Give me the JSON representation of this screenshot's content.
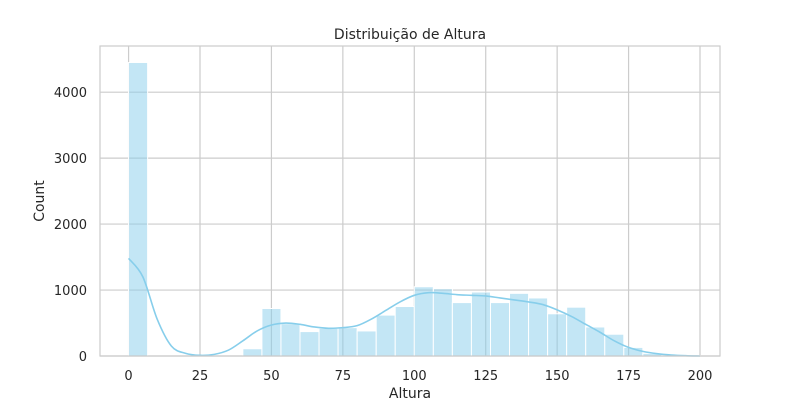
{
  "chart_data": {
    "type": "histogram",
    "title": "Distribuição de Altura",
    "xlabel": "Altura",
    "ylabel": "Count",
    "xlim": [
      -10,
      207
    ],
    "ylim": [
      0,
      4700
    ],
    "xticks": [
      0,
      25,
      50,
      75,
      100,
      125,
      150,
      175,
      200
    ],
    "yticks": [
      0,
      1000,
      2000,
      3000,
      4000
    ],
    "grid": true,
    "bar_color": "#87ceeb",
    "kde_color": "#87ceeb",
    "bins": [
      {
        "x0": 0,
        "x1": 6.67,
        "count": 4450
      },
      {
        "x0": 6.67,
        "x1": 13.33,
        "count": 0
      },
      {
        "x0": 13.33,
        "x1": 20,
        "count": 0
      },
      {
        "x0": 20,
        "x1": 26.67,
        "count": 0
      },
      {
        "x0": 26.67,
        "x1": 33.33,
        "count": 0
      },
      {
        "x0": 33.33,
        "x1": 40,
        "count": 0
      },
      {
        "x0": 40,
        "x1": 46.67,
        "count": 110
      },
      {
        "x0": 46.67,
        "x1": 53.33,
        "count": 720
      },
      {
        "x0": 53.33,
        "x1": 60,
        "count": 490
      },
      {
        "x0": 60,
        "x1": 66.67,
        "count": 370
      },
      {
        "x0": 66.67,
        "x1": 73.33,
        "count": 420
      },
      {
        "x0": 73.33,
        "x1": 80,
        "count": 430
      },
      {
        "x0": 80,
        "x1": 86.67,
        "count": 380
      },
      {
        "x0": 86.67,
        "x1": 93.33,
        "count": 620
      },
      {
        "x0": 93.33,
        "x1": 100,
        "count": 750
      },
      {
        "x0": 100,
        "x1": 106.67,
        "count": 1050
      },
      {
        "x0": 106.67,
        "x1": 113.33,
        "count": 1020
      },
      {
        "x0": 113.33,
        "x1": 120,
        "count": 810
      },
      {
        "x0": 120,
        "x1": 126.67,
        "count": 970
      },
      {
        "x0": 126.67,
        "x1": 133.33,
        "count": 810
      },
      {
        "x0": 133.33,
        "x1": 140,
        "count": 950
      },
      {
        "x0": 140,
        "x1": 146.67,
        "count": 880
      },
      {
        "x0": 146.67,
        "x1": 153.33,
        "count": 640
      },
      {
        "x0": 153.33,
        "x1": 160,
        "count": 740
      },
      {
        "x0": 160,
        "x1": 166.67,
        "count": 440
      },
      {
        "x0": 166.67,
        "x1": 173.33,
        "count": 330
      },
      {
        "x0": 173.33,
        "x1": 180,
        "count": 130
      },
      {
        "x0": 180,
        "x1": 186.67,
        "count": 40
      },
      {
        "x0": 186.67,
        "x1": 193.33,
        "count": 15
      },
      {
        "x0": 193.33,
        "x1": 200,
        "count": 5
      }
    ],
    "kde": {
      "x": [
        0,
        5,
        10,
        15,
        20,
        25,
        30,
        35,
        40,
        45,
        50,
        55,
        60,
        65,
        70,
        75,
        80,
        85,
        90,
        95,
        100,
        105,
        110,
        115,
        120,
        125,
        130,
        135,
        140,
        145,
        150,
        155,
        160,
        165,
        170,
        175,
        180,
        185,
        190,
        195,
        200
      ],
      "y": [
        1480,
        1200,
        560,
        150,
        40,
        10,
        25,
        90,
        230,
        380,
        470,
        500,
        480,
        440,
        420,
        430,
        460,
        560,
        690,
        820,
        920,
        960,
        950,
        930,
        920,
        910,
        880,
        850,
        820,
        780,
        700,
        600,
        480,
        360,
        230,
        130,
        70,
        35,
        15,
        5,
        0
      ]
    }
  }
}
